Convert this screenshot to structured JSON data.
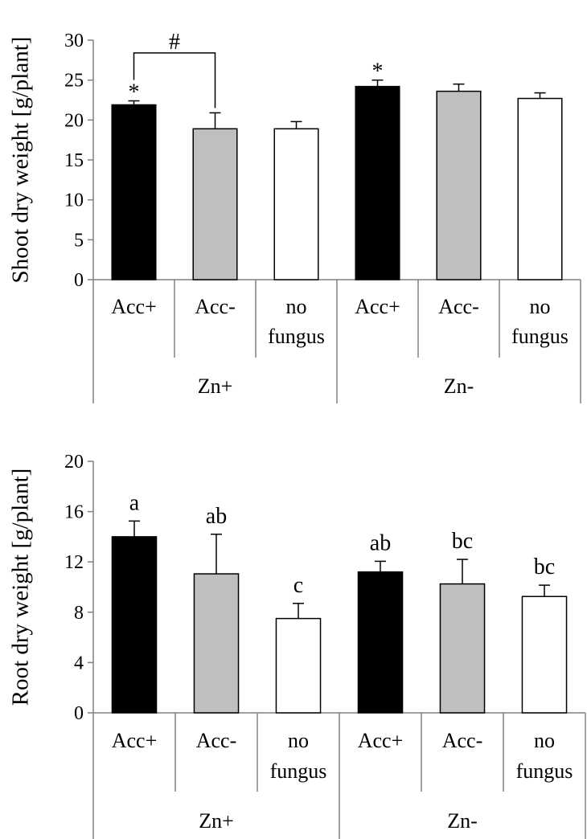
{
  "chart_data": [
    {
      "type": "bar",
      "ylabel": "Shoot dry weight [g/plant]",
      "ylim": [
        0,
        30
      ],
      "ytick_labels": [
        "0",
        "5",
        "10",
        "15",
        "20",
        "25",
        "30"
      ],
      "groups": [
        {
          "label": "Zn+",
          "categories": [
            "Acc+",
            "Acc-",
            "no fungus"
          ]
        },
        {
          "label": "Zn-",
          "categories": [
            "Acc+",
            "Acc-",
            "no fungus"
          ]
        }
      ],
      "bars": [
        {
          "group": "Zn+",
          "category": "Acc+",
          "value": 21.9,
          "error": 0.5,
          "color": "#000000",
          "annotation": "*"
        },
        {
          "group": "Zn+",
          "category": "Acc-",
          "value": 18.9,
          "error": 2.0,
          "color": "#bfbfbf",
          "annotation": ""
        },
        {
          "group": "Zn+",
          "category": "no fungus",
          "value": 18.9,
          "error": 0.9,
          "color": "#ffffff",
          "annotation": ""
        },
        {
          "group": "Zn-",
          "category": "Acc+",
          "value": 24.2,
          "error": 0.8,
          "color": "#000000",
          "annotation": "*"
        },
        {
          "group": "Zn-",
          "category": "Acc-",
          "value": 23.6,
          "error": 0.9,
          "color": "#bfbfbf",
          "annotation": ""
        },
        {
          "group": "Zn-",
          "category": "no fungus",
          "value": 22.7,
          "error": 0.7,
          "color": "#ffffff",
          "annotation": ""
        }
      ],
      "bracket": {
        "label": "#",
        "from_bar": 0,
        "to_bar": 1,
        "level": 28.4
      }
    },
    {
      "type": "bar",
      "ylabel": "Root dry weight [g/plant]",
      "ylim": [
        0,
        20
      ],
      "ytick_labels": [
        "0",
        "4",
        "8",
        "12",
        "16",
        "20"
      ],
      "groups": [
        {
          "label": "Zn+",
          "categories": [
            "Acc+",
            "Acc-",
            "no fungus"
          ]
        },
        {
          "label": "Zn-",
          "categories": [
            "Acc+",
            "Acc-",
            "no fungus"
          ]
        }
      ],
      "bars": [
        {
          "group": "Zn+",
          "category": "Acc+",
          "value": 14.0,
          "error": 1.25,
          "color": "#000000",
          "annotation": "a"
        },
        {
          "group": "Zn+",
          "category": "Acc-",
          "value": 11.05,
          "error": 3.15,
          "color": "#bfbfbf",
          "annotation": "ab"
        },
        {
          "group": "Zn+",
          "category": "no fungus",
          "value": 7.5,
          "error": 1.2,
          "color": "#ffffff",
          "annotation": "c"
        },
        {
          "group": "Zn-",
          "category": "Acc+",
          "value": 11.2,
          "error": 0.85,
          "color": "#000000",
          "annotation": "ab"
        },
        {
          "group": "Zn-",
          "category": "Acc-",
          "value": 10.25,
          "error": 1.95,
          "color": "#bfbfbf",
          "annotation": "bc"
        },
        {
          "group": "Zn-",
          "category": "no fungus",
          "value": 9.25,
          "error": 0.9,
          "color": "#ffffff",
          "annotation": "bc"
        }
      ]
    }
  ]
}
